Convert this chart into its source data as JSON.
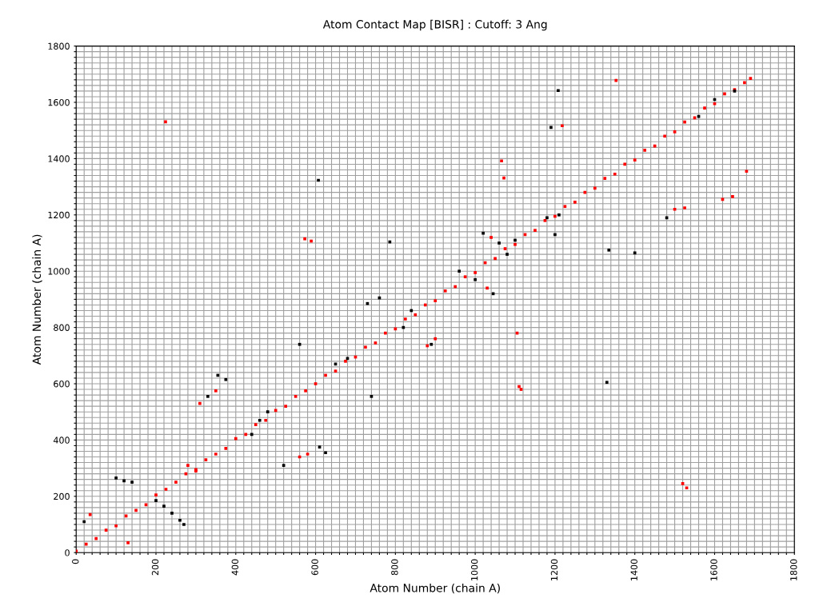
{
  "chart_data": {
    "type": "scatter",
    "title": "Atom Contact Map [BISR] : Cutoff: 3 Ang",
    "xlabel": "Atom Number (chain A)",
    "ylabel": "Atom Number (chain A)",
    "marker": "square",
    "grid": true,
    "xlim": [
      0,
      1800
    ],
    "ylim": [
      0,
      1800
    ],
    "xticks": [
      0,
      {
        "value": 20,
        "label": null
      },
      {
        "value": 40,
        "label": null
      },
      {
        "value": 60,
        "label": null
      },
      {
        "value": 80,
        "label": null
      },
      {
        "value": 100,
        "label": null
      },
      {
        "value": 120,
        "label": null
      },
      {
        "value": 140,
        "label": null
      },
      {
        "value": 160,
        "label": null
      },
      {
        "value": 180,
        "label": null
      },
      200,
      {
        "value": 220,
        "label": null
      },
      {
        "value": 240,
        "label": null
      },
      {
        "value": 260,
        "label": null
      },
      {
        "value": 280,
        "label": null
      },
      {
        "value": 300,
        "label": null
      },
      {
        "value": 320,
        "label": null
      },
      {
        "value": 340,
        "label": null
      },
      {
        "value": 360,
        "label": null
      },
      {
        "value": 380,
        "label": null
      },
      400,
      {
        "value": 420,
        "label": null
      },
      {
        "value": 440,
        "label": null
      },
      {
        "value": 460,
        "label": null
      },
      {
        "value": 480,
        "label": null
      },
      {
        "value": 500,
        "label": null
      },
      {
        "value": 520,
        "label": null
      },
      {
        "value": 540,
        "label": null
      },
      {
        "value": 560,
        "label": null
      },
      {
        "value": 580,
        "label": null
      },
      600,
      {
        "value": 620,
        "label": null
      },
      {
        "value": 640,
        "label": null
      },
      {
        "value": 660,
        "label": null
      },
      {
        "value": 680,
        "label": null
      },
      {
        "value": 700,
        "label": null
      },
      {
        "value": 720,
        "label": null
      },
      {
        "value": 740,
        "label": null
      },
      {
        "value": 760,
        "label": null
      },
      {
        "value": 780,
        "label": null
      },
      800,
      {
        "value": 820,
        "label": null
      },
      {
        "value": 840,
        "label": null
      },
      {
        "value": 860,
        "label": null
      },
      {
        "value": 880,
        "label": null
      },
      {
        "value": 900,
        "label": null
      },
      {
        "value": 920,
        "label": null
      },
      {
        "value": 940,
        "label": null
      },
      {
        "value": 960,
        "label": null
      },
      {
        "value": 980,
        "label": null
      },
      1000,
      {
        "value": 1020,
        "label": null
      },
      {
        "value": 1040,
        "label": null
      },
      {
        "value": 1060,
        "label": null
      },
      {
        "value": 1080,
        "label": null
      },
      {
        "value": 1100,
        "label": null
      },
      {
        "value": 1120,
        "label": null
      },
      {
        "value": 1140,
        "label": null
      },
      {
        "value": 1160,
        "label": null
      },
      {
        "value": 1180,
        "label": null
      },
      1200,
      {
        "value": 1220,
        "label": null
      },
      {
        "value": 1240,
        "label": null
      },
      {
        "value": 1260,
        "label": null
      },
      {
        "value": 1280,
        "label": null
      },
      {
        "value": 1300,
        "label": null
      },
      {
        "value": 1320,
        "label": null
      },
      {
        "value": 1340,
        "label": null
      },
      {
        "value": 1360,
        "label": null
      },
      {
        "value": 1380,
        "label": null
      },
      1400,
      {
        "value": 1420,
        "label": null
      },
      {
        "value": 1440,
        "label": null
      },
      {
        "value": 1460,
        "label": null
      },
      {
        "value": 1480,
        "label": null
      },
      {
        "value": 1500,
        "label": null
      },
      {
        "value": 1520,
        "label": null
      },
      {
        "value": 1540,
        "label": null
      },
      {
        "value": 1560,
        "label": null
      },
      {
        "value": 1580,
        "label": null
      },
      1600,
      {
        "value": 1620,
        "label": null
      },
      {
        "value": 1640,
        "label": null
      },
      {
        "value": 1660,
        "label": null
      },
      {
        "value": 1680,
        "label": null
      },
      {
        "value": 1700,
        "label": null
      },
      {
        "value": 1720,
        "label": null
      },
      {
        "value": 1740,
        "label": null
      },
      {
        "value": 1760,
        "label": null
      },
      {
        "value": 1780,
        "label": null
      },
      1800
    ],
    "yticks": [
      0,
      {
        "value": 20,
        "label": null
      },
      {
        "value": 40,
        "label": null
      },
      {
        "value": 60,
        "label": null
      },
      {
        "value": 80,
        "label": null
      },
      {
        "value": 100,
        "label": null
      },
      {
        "value": 120,
        "label": null
      },
      {
        "value": 140,
        "label": null
      },
      {
        "value": 160,
        "label": null
      },
      {
        "value": 180,
        "label": null
      },
      200,
      {
        "value": 220,
        "label": null
      },
      {
        "value": 240,
        "label": null
      },
      {
        "value": 260,
        "label": null
      },
      {
        "value": 280,
        "label": null
      },
      {
        "value": 300,
        "label": null
      },
      {
        "value": 320,
        "label": null
      },
      {
        "value": 340,
        "label": null
      },
      {
        "value": 360,
        "label": null
      },
      {
        "value": 380,
        "label": null
      },
      400,
      {
        "value": 420,
        "label": null
      },
      {
        "value": 440,
        "label": null
      },
      {
        "value": 460,
        "label": null
      },
      {
        "value": 480,
        "label": null
      },
      {
        "value": 500,
        "label": null
      },
      {
        "value": 520,
        "label": null
      },
      {
        "value": 540,
        "label": null
      },
      {
        "value": 560,
        "label": null
      },
      {
        "value": 580,
        "label": null
      },
      600,
      {
        "value": 620,
        "label": null
      },
      {
        "value": 640,
        "label": null
      },
      {
        "value": 660,
        "label": null
      },
      {
        "value": 680,
        "label": null
      },
      {
        "value": 700,
        "label": null
      },
      {
        "value": 720,
        "label": null
      },
      {
        "value": 740,
        "label": null
      },
      {
        "value": 760,
        "label": null
      },
      {
        "value": 780,
        "label": null
      },
      800,
      {
        "value": 820,
        "label": null
      },
      {
        "value": 840,
        "label": null
      },
      {
        "value": 860,
        "label": null
      },
      {
        "value": 880,
        "label": null
      },
      {
        "value": 900,
        "label": null
      },
      {
        "value": 920,
        "label": null
      },
      {
        "value": 940,
        "label": null
      },
      {
        "value": 960,
        "label": null
      },
      {
        "value": 980,
        "label": null
      },
      1000,
      {
        "value": 1020,
        "label": null
      },
      {
        "value": 1040,
        "label": null
      },
      {
        "value": 1060,
        "label": null
      },
      {
        "value": 1080,
        "label": null
      },
      {
        "value": 1100,
        "label": null
      },
      {
        "value": 1120,
        "label": null
      },
      {
        "value": 1140,
        "label": null
      },
      {
        "value": 1160,
        "label": null
      },
      {
        "value": 1180,
        "label": null
      },
      1200,
      {
        "value": 1220,
        "label": null
      },
      {
        "value": 1240,
        "label": null
      },
      {
        "value": 1260,
        "label": null
      },
      {
        "value": 1280,
        "label": null
      },
      {
        "value": 1300,
        "label": null
      },
      {
        "value": 1320,
        "label": null
      },
      {
        "value": 1340,
        "label": null
      },
      {
        "value": 1360,
        "label": null
      },
      {
        "value": 1380,
        "label": null
      },
      1400,
      {
        "value": 1420,
        "label": null
      },
      {
        "value": 1440,
        "label": null
      },
      {
        "value": 1460,
        "label": null
      },
      {
        "value": 1480,
        "label": null
      },
      {
        "value": 1500,
        "label": null
      },
      {
        "value": 1520,
        "label": null
      },
      {
        "value": 1540,
        "label": null
      },
      {
        "value": 1560,
        "label": null
      },
      {
        "value": 1580,
        "label": null
      },
      1600,
      {
        "value": 1620,
        "label": null
      },
      {
        "value": 1640,
        "label": null
      },
      {
        "value": 1660,
        "label": null
      },
      {
        "value": 1680,
        "label": null
      },
      {
        "value": 1700,
        "label": null
      },
      {
        "value": 1720,
        "label": null
      },
      {
        "value": 1740,
        "label": null
      },
      {
        "value": 1760,
        "label": null
      },
      {
        "value": 1780,
        "label": null
      },
      1800
    ],
    "series": [
      {
        "color": "#ff0000",
        "x": [
          0,
          25,
          50,
          75,
          100,
          125,
          150,
          175,
          200,
          225,
          250,
          275,
          300,
          325,
          350,
          375,
          400,
          425,
          450,
          475,
          500,
          525,
          550,
          575,
          600,
          625,
          650,
          675,
          700,
          725,
          750,
          775,
          800,
          825,
          850,
          875,
          900,
          925,
          950,
          975,
          1000,
          1025,
          1050,
          1075,
          1100,
          1125,
          1150,
          1175,
          1200,
          1225,
          1250,
          1275,
          1300,
          1325,
          1350,
          1375,
          1400,
          1425,
          1450,
          1475,
          1500,
          1525,
          1550,
          1575,
          1600,
          1625,
          1650,
          1675,
          1690,
          224,
          573,
          589,
          1066,
          1072,
          1218,
          1353,
          1500,
          1525,
          1620,
          1645,
          1680,
          1530,
          1520,
          1110,
          1115,
          1105,
          880,
          900,
          310,
          350,
          130,
          35,
          560,
          580,
          1040,
          1030,
          280,
          300
        ],
        "values": [
          5,
          30,
          50,
          80,
          95,
          130,
          150,
          170,
          205,
          225,
          250,
          280,
          295,
          330,
          350,
          370,
          405,
          420,
          455,
          470,
          505,
          520,
          555,
          575,
          600,
          630,
          645,
          680,
          695,
          730,
          745,
          780,
          795,
          830,
          845,
          880,
          895,
          930,
          945,
          980,
          995,
          1030,
          1045,
          1080,
          1095,
          1130,
          1145,
          1180,
          1195,
          1230,
          1245,
          1280,
          1295,
          1330,
          1345,
          1380,
          1395,
          1430,
          1445,
          1480,
          1495,
          1530,
          1545,
          1580,
          1595,
          1630,
          1645,
          1670,
          1685,
          1531,
          1115,
          1107,
          1392,
          1331,
          1517,
          1678,
          1220,
          1225,
          1255,
          1265,
          1355,
          230,
          245,
          590,
          580,
          780,
          735,
          760,
          530,
          575,
          35,
          135,
          340,
          350,
          1120,
          940,
          310,
          290
        ]
      },
      {
        "color": "#000000",
        "x": [
          607,
          786,
          1190,
          1208,
          1335,
          1400,
          1480,
          1330,
          890,
          740,
          560,
          760,
          730,
          625,
          610,
          520,
          330,
          355,
          375,
          270,
          260,
          240,
          220,
          200,
          100,
          120,
          140,
          20,
          1020,
          1060,
          1180,
          1200,
          1210,
          960,
          1000,
          1045,
          440,
          460,
          480,
          650,
          680,
          820,
          840,
          1080,
          1100,
          1560,
          1600,
          1650
        ],
        "values": [
          1323,
          1104,
          1511,
          1642,
          1075,
          1065,
          1190,
          605,
          740,
          555,
          740,
          905,
          885,
          355,
          375,
          310,
          555,
          630,
          615,
          100,
          115,
          140,
          165,
          185,
          265,
          255,
          250,
          110,
          1135,
          1100,
          1190,
          1130,
          1200,
          1000,
          970,
          920,
          420,
          470,
          500,
          670,
          690,
          800,
          860,
          1060,
          1110,
          1550,
          1610,
          1640
        ]
      }
    ]
  }
}
